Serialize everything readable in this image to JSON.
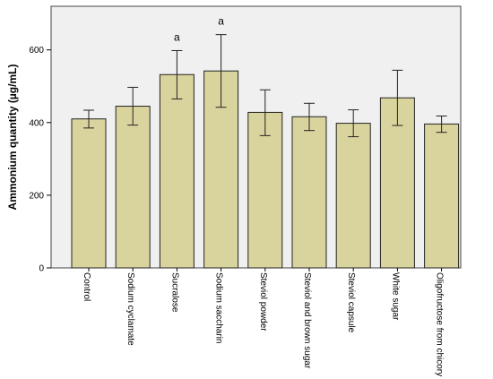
{
  "chart_data": {
    "type": "bar",
    "title": "",
    "xlabel": "",
    "ylabel": "Ammonium quantity (µg/mL)",
    "ylim": [
      0,
      720
    ],
    "yticks": [
      0,
      200,
      400,
      600
    ],
    "grid": false,
    "error_bars": true,
    "categories": [
      "Control",
      "Sodium cyclamate",
      "Sucralose",
      "Sodium saccharin",
      "Steviol powder",
      "Steviol and brown sugar",
      "Steviol capsule",
      "White sugar",
      "Oligofructose from chicory"
    ],
    "values": [
      410,
      445,
      532,
      542,
      428,
      416,
      398,
      468,
      396
    ],
    "error_low": [
      385,
      393,
      465,
      442,
      364,
      378,
      361,
      392,
      373
    ],
    "error_high": [
      434,
      497,
      598,
      642,
      490,
      453,
      435,
      544,
      418
    ],
    "annotations": [
      "",
      "",
      "a",
      "a",
      "",
      "",
      "",
      "",
      ""
    ],
    "bar_color": "#d9d49d",
    "bar_edge_color": "#222222",
    "plot_background": "#f0f0f0"
  }
}
